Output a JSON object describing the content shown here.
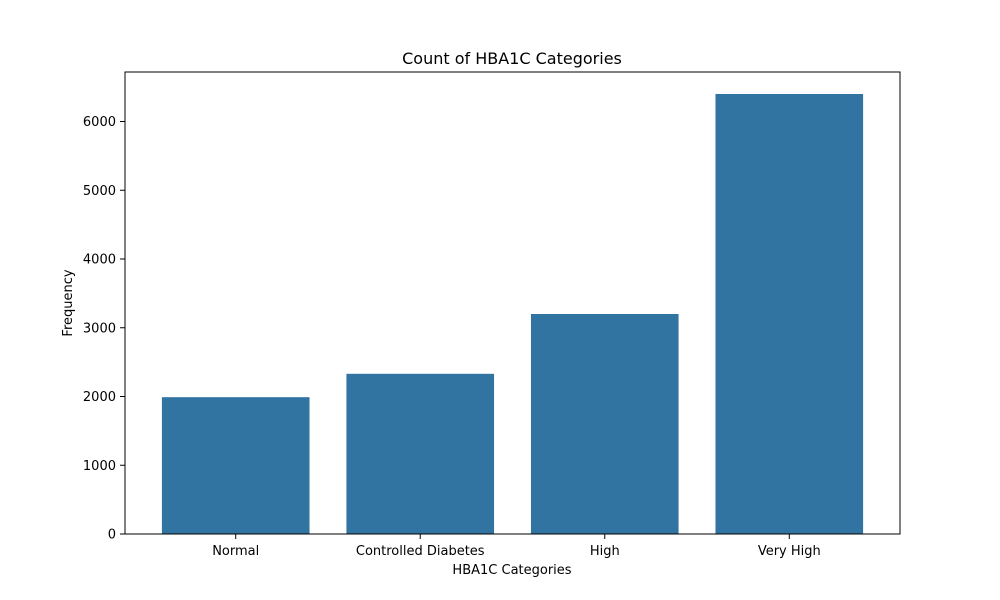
{
  "chart_data": {
    "type": "bar",
    "title": "Count of HBA1C Categories",
    "xlabel": "HBA1C Categories",
    "ylabel": "Frequency",
    "categories": [
      "Normal",
      "Controlled Diabetes",
      "High",
      "Very High"
    ],
    "values": [
      1990,
      2330,
      3200,
      6400
    ],
    "ylim": [
      0,
      6720
    ],
    "yticks": [
      0,
      1000,
      2000,
      3000,
      4000,
      5000,
      6000
    ],
    "bar_color": "#3274a1",
    "grid": false,
    "legend": "none"
  }
}
